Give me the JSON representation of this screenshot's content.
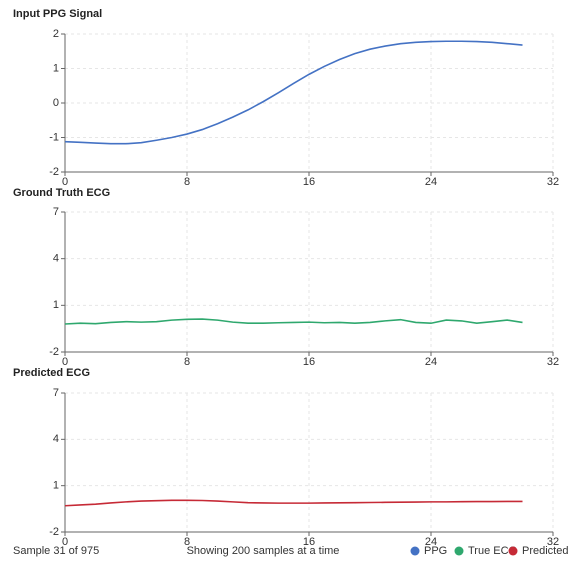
{
  "chart_data": [
    {
      "type": "line",
      "title": "Input PPG Signal",
      "x": [
        0,
        1,
        2,
        3,
        4,
        5,
        6,
        7,
        8,
        9,
        10,
        11,
        12,
        13,
        14,
        15,
        16,
        17,
        18,
        19,
        20,
        21,
        22,
        23,
        24,
        25,
        26,
        27,
        28,
        29,
        30
      ],
      "series": [
        {
          "name": "PPG",
          "color": "#4472c4",
          "values": [
            -1.12,
            -1.14,
            -1.16,
            -1.18,
            -1.18,
            -1.15,
            -1.08,
            -1.0,
            -0.9,
            -0.77,
            -0.6,
            -0.41,
            -0.2,
            0.04,
            0.3,
            0.57,
            0.83,
            1.06,
            1.26,
            1.43,
            1.56,
            1.65,
            1.72,
            1.76,
            1.78,
            1.79,
            1.79,
            1.78,
            1.76,
            1.72,
            1.68
          ]
        }
      ],
      "xlim": [
        0,
        32
      ],
      "xticks": [
        0,
        8,
        16,
        24,
        32
      ],
      "ylim": [
        -2,
        2
      ],
      "yticks": [
        -2,
        -1,
        0,
        1,
        2
      ],
      "grid": true
    },
    {
      "type": "line",
      "title": "Ground Truth ECG",
      "x": [
        0,
        1,
        2,
        3,
        4,
        5,
        6,
        7,
        8,
        9,
        10,
        11,
        12,
        13,
        14,
        15,
        16,
        17,
        18,
        19,
        20,
        21,
        22,
        23,
        24,
        25,
        26,
        27,
        28,
        29,
        30
      ],
      "series": [
        {
          "name": "True ECG",
          "color": "#2fa86e",
          "values": [
            -0.2,
            -0.15,
            -0.18,
            -0.1,
            -0.05,
            -0.08,
            -0.05,
            0.05,
            0.1,
            0.12,
            0.05,
            -0.08,
            -0.15,
            -0.15,
            -0.12,
            -0.1,
            -0.08,
            -0.12,
            -0.1,
            -0.15,
            -0.1,
            0.0,
            0.08,
            -0.1,
            -0.15,
            0.05,
            0.0,
            -0.15,
            -0.05,
            0.05,
            -0.1
          ]
        }
      ],
      "xlim": [
        0,
        32
      ],
      "xticks": [
        0,
        8,
        16,
        24,
        32
      ],
      "ylim": [
        -2,
        7
      ],
      "yticks": [
        -2,
        1,
        4,
        7
      ],
      "grid": true
    },
    {
      "type": "line",
      "title": "Predicted ECG",
      "x": [
        0,
        1,
        2,
        3,
        4,
        5,
        6,
        7,
        8,
        9,
        10,
        11,
        12,
        13,
        14,
        15,
        16,
        17,
        18,
        19,
        20,
        21,
        22,
        23,
        24,
        25,
        26,
        27,
        28,
        29,
        30
      ],
      "series": [
        {
          "name": "Predicted",
          "color": "#c62a36",
          "values": [
            -0.3,
            -0.25,
            -0.2,
            -0.12,
            -0.05,
            0.0,
            0.03,
            0.05,
            0.05,
            0.04,
            0.0,
            -0.05,
            -0.1,
            -0.12,
            -0.13,
            -0.13,
            -0.13,
            -0.12,
            -0.11,
            -0.1,
            -0.09,
            -0.08,
            -0.07,
            -0.06,
            -0.05,
            -0.05,
            -0.04,
            -0.03,
            -0.03,
            -0.02,
            -0.02
          ]
        }
      ],
      "xlim": [
        0,
        32
      ],
      "xticks": [
        0,
        8,
        16,
        24,
        32
      ],
      "ylim": [
        -2,
        7
      ],
      "yticks": [
        -2,
        1,
        4,
        7
      ],
      "grid": true
    }
  ],
  "footer": {
    "sample": "Sample 31 of 975",
    "info": "Showing 200 samples at a time"
  }
}
